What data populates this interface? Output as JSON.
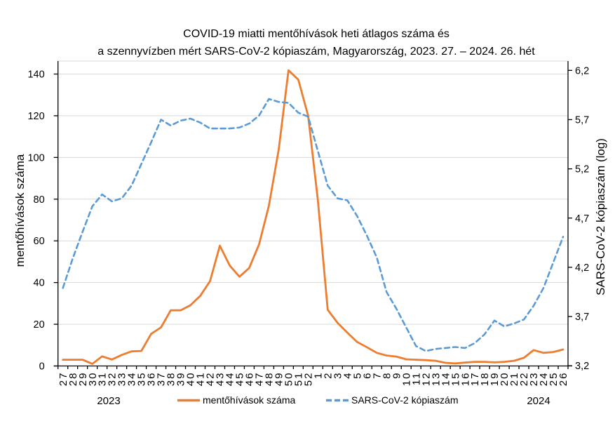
{
  "title": {
    "line1": "COVID-19 miatti mentőhívások heti átlagos száma és",
    "line2": "a szennyvízben mért SARS-CoV-2 kópiaszám, Magyarország, 2023. 27. – 2024. 26. hét"
  },
  "chart_data": {
    "type": "line",
    "x_labels": [
      "27",
      "28",
      "29",
      "30",
      "31",
      "32",
      "33",
      "34",
      "35",
      "36",
      "37",
      "38",
      "39",
      "40",
      "41",
      "42",
      "43",
      "44",
      "45",
      "46",
      "47",
      "48",
      "49",
      "50",
      "51",
      "52",
      "1",
      "2",
      "3",
      "4",
      "5",
      "6",
      "7",
      "8",
      "9",
      "10",
      "11",
      "12",
      "13",
      "14",
      "15",
      "16",
      "17",
      "18",
      "19",
      "20",
      "21",
      "22",
      "23",
      "24",
      "25",
      "26"
    ],
    "x_groups": [
      {
        "label": "2023"
      },
      {
        "label": "2024"
      }
    ],
    "left_axis": {
      "title": "mentőhívások száma",
      "min": 0,
      "max": 140,
      "step": 20,
      "tick_labels": [
        "0",
        "20",
        "40",
        "60",
        "80",
        "100",
        "120",
        "140"
      ]
    },
    "right_axis": {
      "title": "SARS-CoV-2 kópiaszám (log)",
      "min": 3.2,
      "max": 6.2,
      "step": 0.5,
      "tick_labels": [
        "3,2",
        "3,7",
        "4,2",
        "4,7",
        "5,2",
        "5,7",
        "6,2"
      ]
    },
    "grid_color": "#D9D9D9",
    "axis_color": "#000000",
    "series": [
      {
        "name": "mentőhívások száma",
        "axis": "left",
        "style": "solid",
        "color": "#ED7D31",
        "values": [
          3,
          3,
          3,
          1,
          4.6,
          3.1,
          5.3,
          7,
          7.2,
          15.4,
          18.5,
          26.7,
          26.7,
          29.1,
          33.6,
          40.7,
          57.7,
          48.2,
          42.8,
          47,
          58.3,
          76.8,
          103.7,
          141.8,
          137.3,
          120,
          79.5,
          27,
          20.7,
          16,
          11.5,
          9,
          6.3,
          5,
          4.5,
          3.2,
          3,
          2.8,
          2.5,
          1.5,
          1.2,
          1.6,
          2,
          2,
          1.7,
          2,
          2.5,
          3.9,
          7.6,
          6.3,
          6.7,
          7.9
        ]
      },
      {
        "name": "SARS-CoV-2 kópiaszám",
        "axis": "right",
        "style": "dashed",
        "color": "#5B9BD5",
        "values": [
          3.99,
          4.29,
          4.56,
          4.82,
          4.94,
          4.87,
          4.9,
          5.03,
          5.25,
          5.47,
          5.7,
          5.64,
          5.69,
          5.71,
          5.67,
          5.61,
          5.61,
          5.61,
          5.62,
          5.66,
          5.74,
          5.91,
          5.88,
          5.87,
          5.77,
          5.73,
          5.38,
          5.03,
          4.9,
          4.88,
          4.72,
          4.52,
          4.3,
          3.95,
          3.78,
          3.59,
          3.4,
          3.35,
          3.37,
          3.38,
          3.39,
          3.38,
          3.43,
          3.52,
          3.66,
          3.6,
          3.63,
          3.67,
          3.81,
          3.99,
          4.25,
          4.51
        ]
      }
    ]
  }
}
